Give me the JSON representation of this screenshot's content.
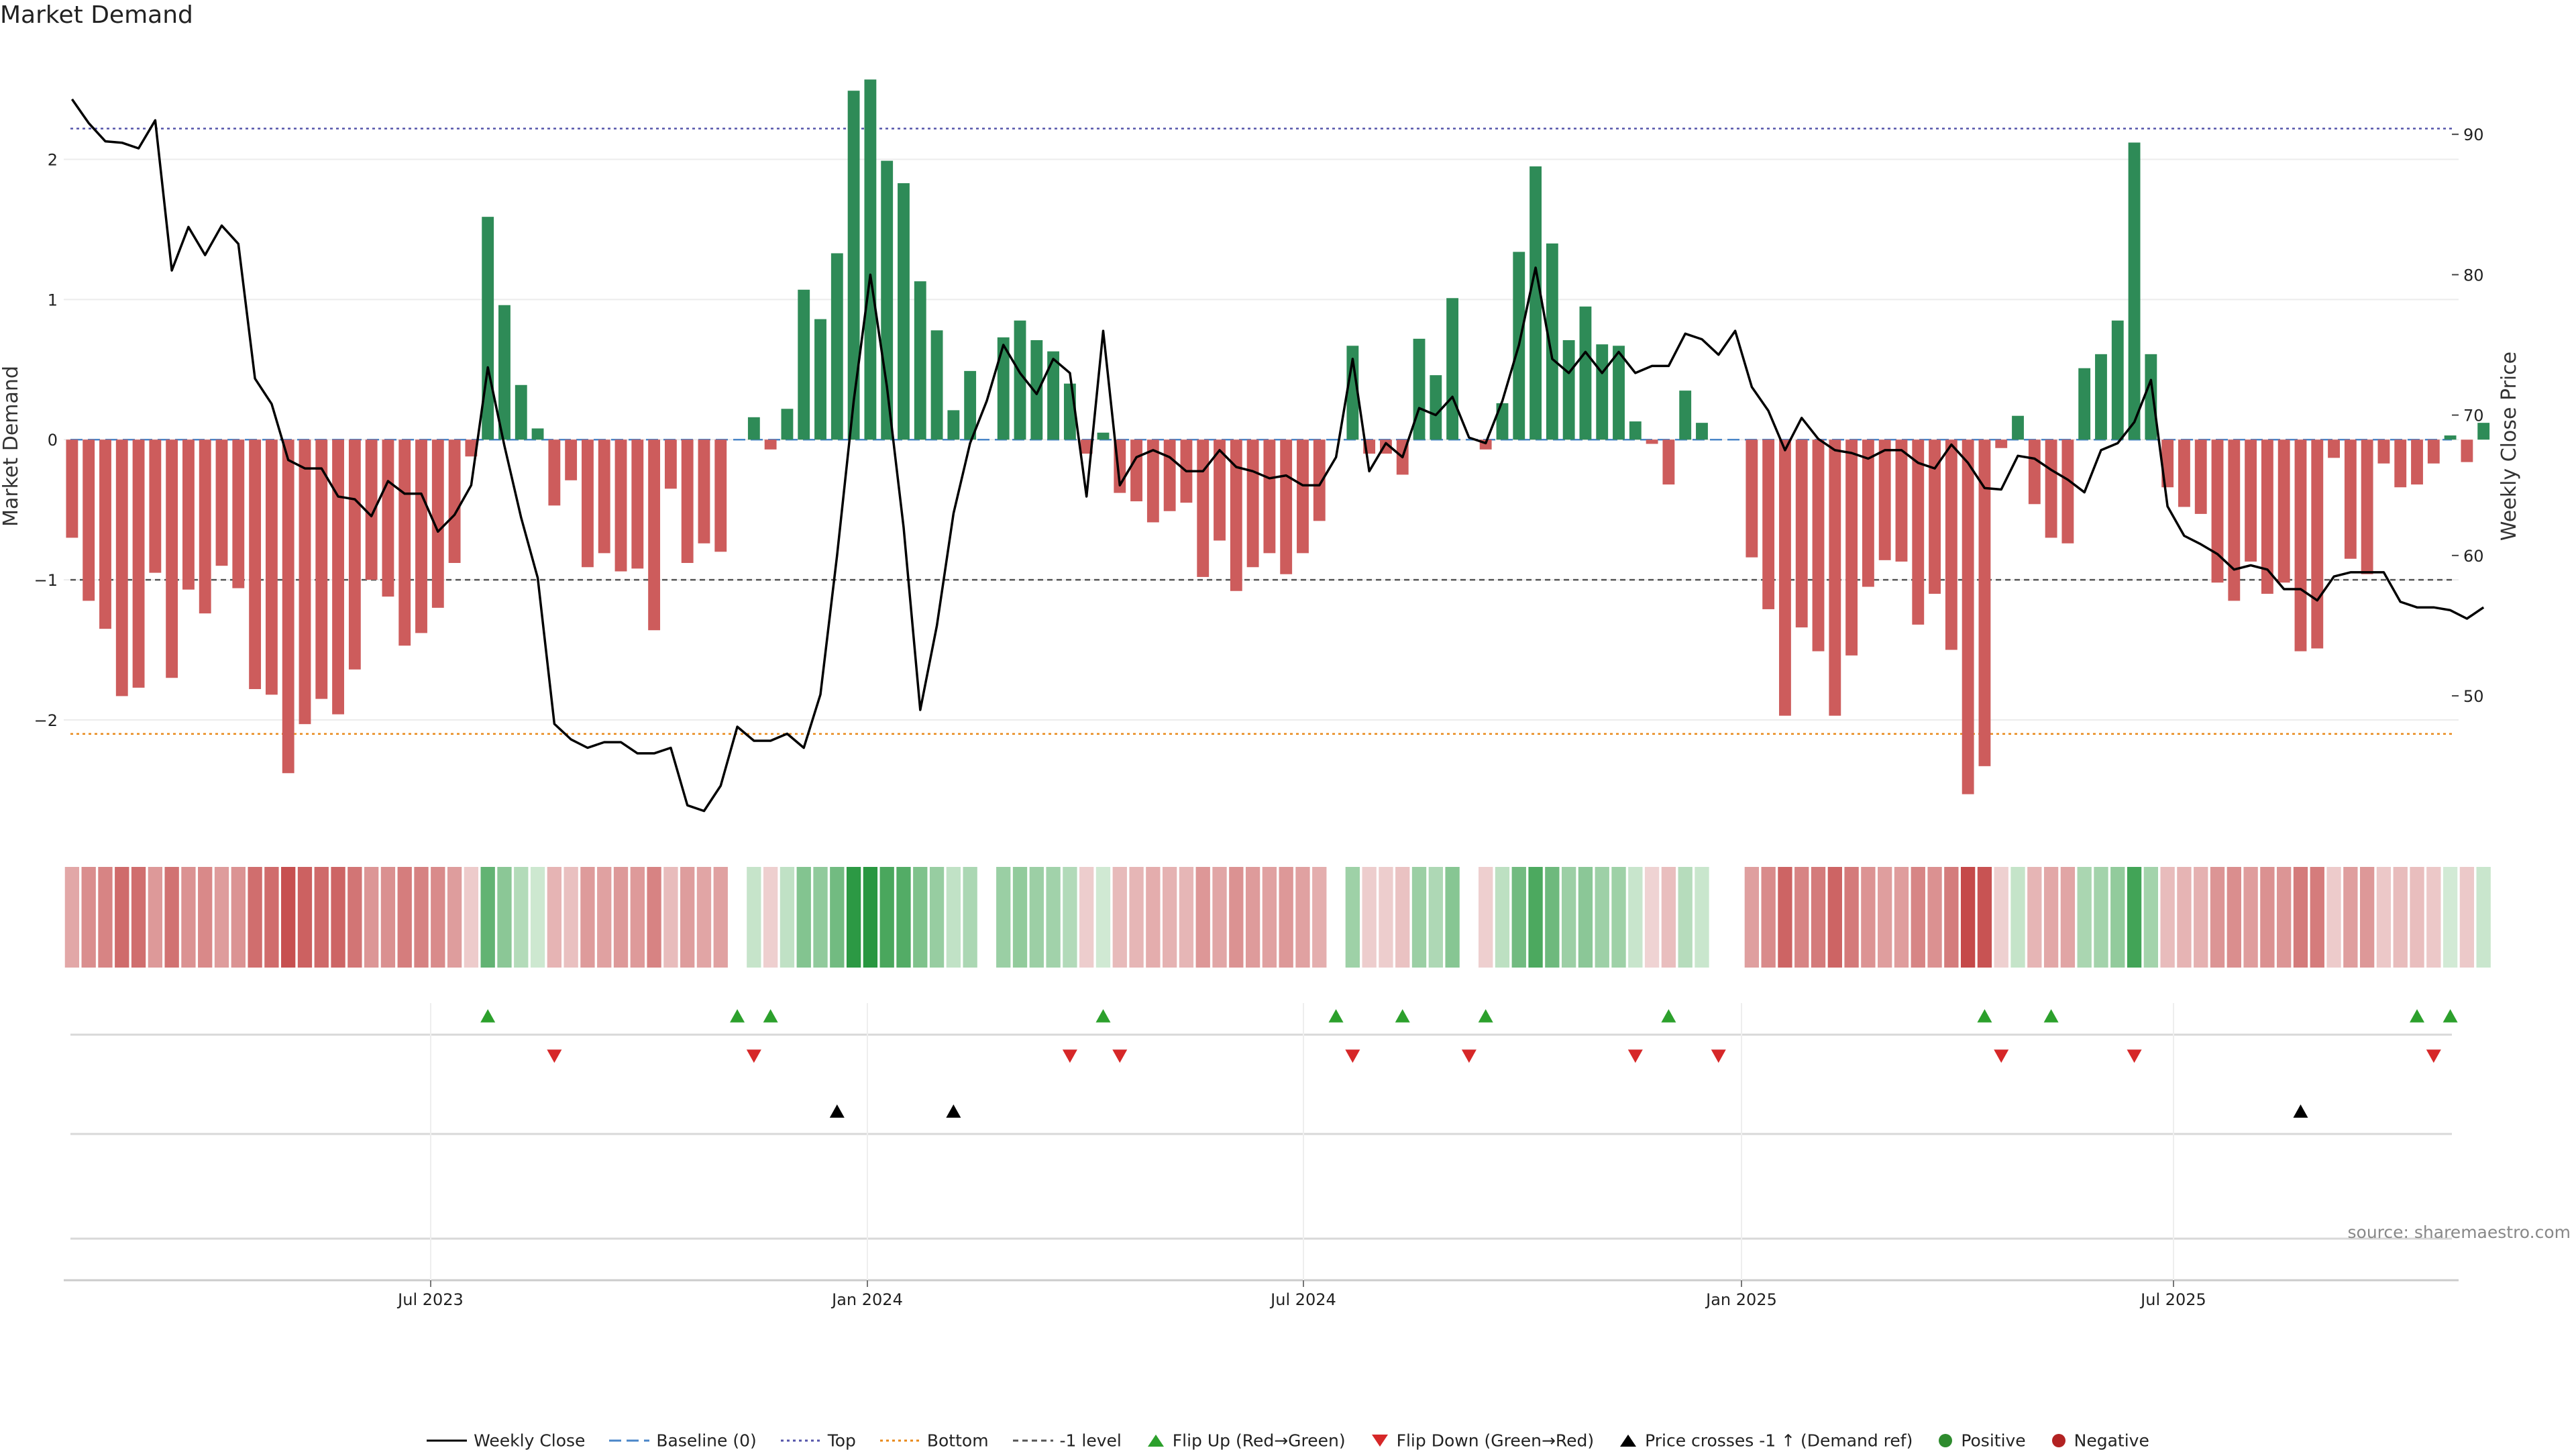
{
  "title": "Market Demand",
  "source": "source: sharemaestro.com",
  "colors": {
    "positive": "#2e8b57",
    "negative": "#cd5c5c",
    "price_line": "#000000",
    "top_line": "#5555aa",
    "bottom_line": "#e8891a",
    "minus1_line": "#555555",
    "baseline": "#4a86c8",
    "flip_up": "#2ca02c",
    "flip_down": "#d62728",
    "cross": "#000000"
  },
  "chart_data": {
    "type": "bar",
    "ylabel": "Market Demand",
    "y2label": "Weekly Close Price",
    "ylim": [
      -2.8,
      2.85
    ],
    "y2lim": [
      40.3,
      96.7
    ],
    "yticks": [
      2,
      1,
      0,
      -1,
      -2
    ],
    "ytick_labels": [
      "2",
      "1",
      "0",
      "−1",
      "−2"
    ],
    "y2ticks": [
      90,
      80,
      70,
      60,
      50
    ],
    "y2tick_labels": [
      "90",
      "80",
      "70",
      "60",
      "50"
    ],
    "x_labels": [
      "Jul 2023",
      "Jan 2024",
      "Jul 2024",
      "Jan 2025",
      "Jul 2025"
    ],
    "reference_lines": {
      "top": 2.22,
      "bottom": -2.1,
      "minus1": -1.0,
      "baseline": 0
    },
    "weeks": 144,
    "demand": [
      -0.7,
      -1.15,
      -1.35,
      -1.83,
      -1.77,
      -0.95,
      -1.7,
      -1.07,
      -1.24,
      -0.9,
      -1.06,
      -1.78,
      -1.82,
      -2.38,
      -2.03,
      -1.85,
      -1.96,
      -1.64,
      -1.0,
      -1.12,
      -1.47,
      -1.38,
      -1.2,
      -0.88,
      -0.12,
      1.59,
      0.96,
      0.39,
      0.08,
      -0.47,
      -0.29,
      -0.91,
      -0.81,
      -0.94,
      -0.92,
      -1.36,
      -0.35,
      -0.88,
      -0.74,
      -0.8,
      0.0,
      0.16,
      -0.07,
      0.22,
      1.07,
      0.86,
      1.33,
      2.49,
      2.57,
      1.99,
      1.83,
      1.13,
      0.78,
      0.21,
      0.49,
      0.0,
      0.73,
      0.85,
      0.71,
      0.63,
      0.4,
      -0.1,
      0.05,
      -0.38,
      -0.44,
      -0.59,
      -0.51,
      -0.45,
      -0.98,
      -0.72,
      -1.08,
      -0.91,
      -0.81,
      -0.96,
      -0.81,
      -0.58,
      0.0,
      0.67,
      -0.1,
      -0.1,
      -0.25,
      0.72,
      0.46,
      1.01,
      0.0,
      -0.07,
      0.26,
      1.34,
      1.95,
      1.4,
      0.71,
      0.95,
      0.68,
      0.67,
      0.13,
      -0.03,
      -0.32,
      0.35,
      0.12,
      0.0,
      0.0,
      -0.84,
      -1.21,
      -1.97,
      -1.34,
      -1.51,
      -1.97,
      -1.54,
      -1.05,
      -0.86,
      -0.87,
      -1.32,
      -1.1,
      -1.5,
      -2.53,
      -2.33,
      -0.06,
      0.17,
      -0.46,
      -0.7,
      -0.74,
      0.51,
      0.61,
      0.85,
      2.12,
      0.61,
      -0.34,
      -0.48,
      -0.53,
      -1.02,
      -1.15,
      -0.87,
      -1.1,
      -1.02,
      -1.51,
      -1.49,
      -0.13,
      -0.85,
      -0.96,
      -0.17,
      -0.34,
      -0.32,
      -0.17,
      0.03,
      -0.16,
      0.12
    ],
    "close": [
      92.5,
      90.8,
      89.5,
      89.4,
      89.0,
      91.0,
      80.3,
      83.4,
      81.4,
      83.5,
      82.2,
      72.6,
      70.8,
      66.8,
      66.2,
      66.2,
      64.2,
      64.0,
      62.8,
      65.3,
      64.4,
      64.4,
      61.7,
      62.9,
      65.0,
      73.4,
      67.8,
      62.7,
      58.4,
      48.0,
      46.9,
      46.3,
      46.7,
      46.7,
      45.9,
      45.9,
      46.3,
      42.2,
      41.8,
      43.6,
      47.8,
      46.8,
      46.8,
      47.3,
      46.3,
      50.1,
      60.0,
      71.0,
      80.0,
      72.0,
      62.0,
      49.0,
      55.0,
      63.0,
      68.0,
      71.0,
      75.0,
      73.0,
      71.5,
      74.0,
      73.0,
      64.2,
      76.0,
      65.0,
      67.0,
      67.5,
      67.0,
      66.0,
      66.0,
      67.5,
      66.3,
      66.0,
      65.5,
      65.7,
      65.0,
      65.0,
      67.0,
      74.0,
      66.0,
      68.0,
      67.0,
      70.5,
      70.0,
      71.3,
      68.4,
      68.0,
      71.0,
      75.0,
      80.5,
      74.0,
      73.0,
      74.5,
      73.0,
      74.5,
      73.0,
      73.5,
      73.5,
      75.8,
      75.4,
      74.3,
      76.0,
      72.0,
      70.3,
      67.5,
      69.8,
      68.3,
      67.5,
      67.3,
      66.9,
      67.5,
      67.5,
      66.6,
      66.2,
      67.9,
      66.6,
      64.8,
      64.7,
      67.1,
      66.9,
      66.1,
      65.4,
      64.5,
      67.5,
      68.0,
      69.5,
      72.5,
      63.5,
      61.4,
      60.8,
      60.1,
      59.0,
      59.3,
      59.0,
      57.6,
      57.6,
      56.8,
      58.5,
      58.8,
      58.8,
      58.8,
      56.7,
      56.3,
      56.3,
      56.1,
      55.5,
      56.3
    ],
    "flip_up_weeks": [
      25,
      40,
      42,
      62,
      76,
      80,
      85,
      96,
      115,
      119,
      141,
      143
    ],
    "flip_down_weeks": [
      29,
      41,
      60,
      63,
      77,
      84,
      94,
      99,
      116,
      124,
      142
    ],
    "cross_weeks": [
      46,
      53,
      134
    ],
    "legend": [
      "Weekly Close",
      "Baseline (0)",
      "Top",
      "Bottom",
      "-1 level",
      "Flip Up (Red→Green)",
      "Flip Down (Green→Red)",
      "Price crosses -1 ↑ (Demand ref)",
      "Positive",
      "Negative"
    ]
  }
}
